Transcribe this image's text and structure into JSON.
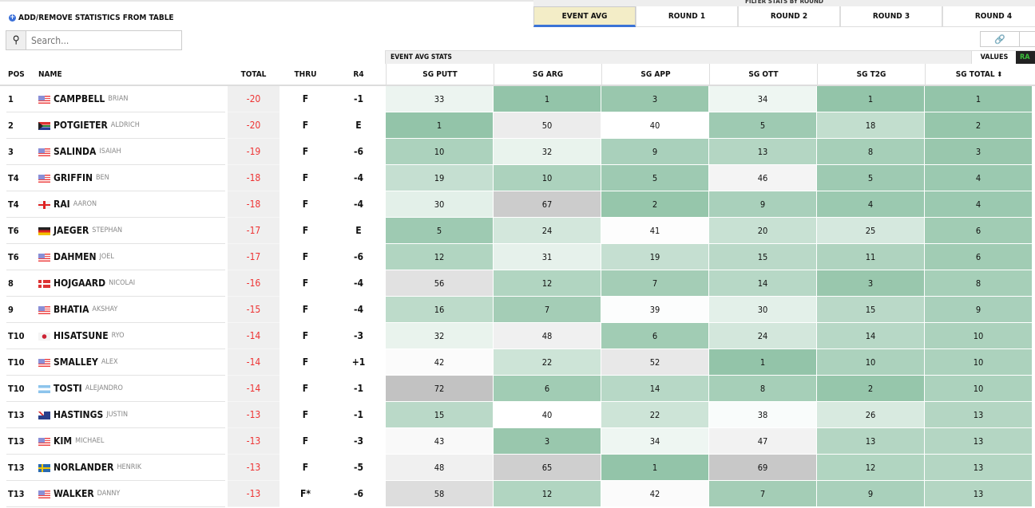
{
  "toolbar": {
    "add_remove_label": "ADD/REMOVE STATISTICS FROM TABLE",
    "search_placeholder": "Search...",
    "filter_heading": "FILTER STATS BY ROUND"
  },
  "round_tabs": [
    {
      "label": "EVENT AVG",
      "active": true
    },
    {
      "label": "ROUND 1"
    },
    {
      "label": "ROUND 2"
    },
    {
      "label": "ROUND 3"
    },
    {
      "label": "ROUND 4"
    }
  ],
  "stats_bar": {
    "title": "EVENT AVG STATS",
    "values_label": "VALUES",
    "ranks_label": "RA"
  },
  "columns": {
    "pos": "POS",
    "name": "NAME",
    "total": "TOTAL",
    "thru": "THRU",
    "r4": "R4",
    "stats": [
      "SG PUTT",
      "SG ARG",
      "SG APP",
      "SG OTT",
      "SG T2G",
      "SG TOTAL"
    ]
  },
  "colors": {
    "best_rank": "#93c4a9",
    "mid_rank": "#ffffff",
    "worst_rank": "#c2c2c2",
    "score_red": "#ee3333",
    "active_tab": "#f3edc7",
    "tab_underline": "#3b73d6"
  },
  "rows": [
    {
      "pos": "1",
      "flag": "us",
      "last": "CAMPBELL",
      "first": "BRIAN",
      "total": "-20",
      "thru": "F",
      "r4": "-1",
      "stats": [
        33,
        1,
        3,
        34,
        1,
        1
      ]
    },
    {
      "pos": "2",
      "flag": "za",
      "last": "POTGIETER",
      "first": "ALDRICH",
      "total": "-20",
      "thru": "F",
      "r4": "E",
      "stats": [
        1,
        50,
        40,
        5,
        18,
        2
      ]
    },
    {
      "pos": "3",
      "flag": "us",
      "last": "SALINDA",
      "first": "ISAIAH",
      "total": "-19",
      "thru": "F",
      "r4": "-6",
      "stats": [
        10,
        32,
        9,
        13,
        8,
        3
      ]
    },
    {
      "pos": "T4",
      "flag": "us",
      "last": "GRIFFIN",
      "first": "BEN",
      "total": "-18",
      "thru": "F",
      "r4": "-4",
      "stats": [
        19,
        10,
        5,
        46,
        5,
        4
      ]
    },
    {
      "pos": "T4",
      "flag": "eng",
      "last": "RAI",
      "first": "AARON",
      "total": "-18",
      "thru": "F",
      "r4": "-4",
      "stats": [
        30,
        67,
        2,
        9,
        4,
        4
      ]
    },
    {
      "pos": "T6",
      "flag": "de",
      "last": "JAEGER",
      "first": "STEPHAN",
      "total": "-17",
      "thru": "F",
      "r4": "E",
      "stats": [
        5,
        24,
        41,
        20,
        25,
        6
      ]
    },
    {
      "pos": "T6",
      "flag": "us",
      "last": "DAHMEN",
      "first": "JOEL",
      "total": "-17",
      "thru": "F",
      "r4": "-6",
      "stats": [
        12,
        31,
        19,
        15,
        11,
        6
      ]
    },
    {
      "pos": "8",
      "flag": "dk",
      "last": "HOJGAARD",
      "first": "NICOLAI",
      "total": "-16",
      "thru": "F",
      "r4": "-4",
      "stats": [
        56,
        12,
        7,
        14,
        3,
        8
      ]
    },
    {
      "pos": "9",
      "flag": "us",
      "last": "BHATIA",
      "first": "AKSHAY",
      "total": "-15",
      "thru": "F",
      "r4": "-4",
      "stats": [
        16,
        7,
        39,
        30,
        15,
        9
      ]
    },
    {
      "pos": "T10",
      "flag": "jp",
      "last": "HISATSUNE",
      "first": "RYO",
      "total": "-14",
      "thru": "F",
      "r4": "-3",
      "stats": [
        32,
        48,
        6,
        24,
        14,
        10
      ]
    },
    {
      "pos": "T10",
      "flag": "us",
      "last": "SMALLEY",
      "first": "ALEX",
      "total": "-14",
      "thru": "F",
      "r4": "+1",
      "stats": [
        42,
        22,
        52,
        1,
        10,
        10
      ]
    },
    {
      "pos": "T10",
      "flag": "ar",
      "last": "TOSTI",
      "first": "ALEJANDRO",
      "total": "-14",
      "thru": "F",
      "r4": "-1",
      "stats": [
        72,
        6,
        14,
        8,
        2,
        10
      ]
    },
    {
      "pos": "T13",
      "flag": "ky",
      "last": "HASTINGS",
      "first": "JUSTIN",
      "total": "-13",
      "thru": "F",
      "r4": "-1",
      "stats": [
        15,
        40,
        22,
        38,
        26,
        13
      ]
    },
    {
      "pos": "T13",
      "flag": "us",
      "last": "KIM",
      "first": "MICHAEL",
      "total": "-13",
      "thru": "F",
      "r4": "-3",
      "stats": [
        43,
        3,
        34,
        47,
        13,
        13
      ]
    },
    {
      "pos": "T13",
      "flag": "se",
      "last": "NORLANDER",
      "first": "HENRIK",
      "total": "-13",
      "thru": "F",
      "r4": "-5",
      "stats": [
        48,
        65,
        1,
        69,
        12,
        13
      ]
    },
    {
      "pos": "T13",
      "flag": "us",
      "last": "WALKER",
      "first": "DANNY",
      "total": "-13",
      "thru": "F*",
      "r4": "-6",
      "stats": [
        58,
        12,
        42,
        7,
        9,
        13
      ]
    }
  ]
}
